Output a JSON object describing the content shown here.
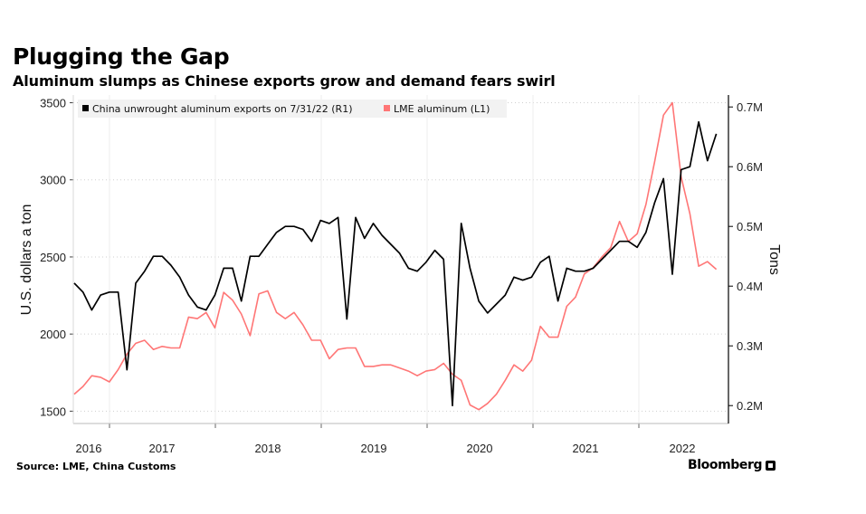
{
  "header": {
    "title": "Plugging the Gap",
    "subtitle": "Aluminum slumps as Chinese exports grow and demand fears swirl"
  },
  "footer": {
    "source": "Source: LME, China Customs",
    "brand": "Bloomberg",
    "brand_icon": "bloomberg-terminal-icon"
  },
  "chart_data": {
    "type": "line",
    "title": "Plugging the Gap",
    "subtitle": "Aluminum slumps as Chinese exports grow and demand fears swirl",
    "x_axis": {
      "ticks": [
        "2016",
        "2017",
        "2018",
        "2019",
        "2020",
        "2021",
        "2022"
      ],
      "range": [
        "2015-12",
        "2022-07"
      ]
    },
    "left_axis": {
      "label": "U.S. dollars a ton",
      "ticks": [
        1500,
        2000,
        2500,
        3000,
        3500
      ],
      "range": [
        1420,
        3550
      ]
    },
    "right_axis": {
      "label": "Tons",
      "ticks": [
        0.2,
        0.3,
        0.4,
        0.5,
        0.6,
        0.7
      ],
      "tick_labels": [
        "0.2M",
        "0.3M",
        "0.4M",
        "0.5M",
        "0.6M",
        "0.7M"
      ],
      "range": [
        0.17,
        0.72
      ]
    },
    "grid": "horizontal-dotted",
    "legend": {
      "position": "top-left"
    },
    "series": [
      {
        "name": "China unwrought aluminum exports on 7/31/22 (R1)",
        "axis": "right",
        "unit": "tons (millions)",
        "color": "#000000",
        "values": [
          0.405,
          0.39,
          0.36,
          0.385,
          0.39,
          0.39,
          0.26,
          0.405,
          0.425,
          0.45,
          0.45,
          0.435,
          0.415,
          0.385,
          0.365,
          0.36,
          0.385,
          0.43,
          0.43,
          0.375,
          0.45,
          0.45,
          0.47,
          0.49,
          0.5,
          0.5,
          0.495,
          0.475,
          0.51,
          0.505,
          0.515,
          0.345,
          0.515,
          0.48,
          0.505,
          0.485,
          0.47,
          0.455,
          0.43,
          0.425,
          0.44,
          0.46,
          0.445,
          0.2,
          0.505,
          0.43,
          0.375,
          0.355,
          0.37,
          0.385,
          0.415,
          0.41,
          0.415,
          0.44,
          0.45,
          0.375,
          0.43,
          0.425,
          0.425,
          0.43,
          0.445,
          0.46,
          0.475,
          0.475,
          0.465,
          0.49,
          0.54,
          0.58,
          0.42,
          0.595,
          0.6,
          0.675,
          0.61,
          0.655
        ]
      },
      {
        "name": "LME aluminum (L1)",
        "axis": "left",
        "unit": "U.S. dollars a ton",
        "color": "#ff7676",
        "values": [
          1610,
          1660,
          1730,
          1720,
          1690,
          1770,
          1870,
          1940,
          1960,
          1900,
          1920,
          1910,
          1910,
          2110,
          2100,
          2140,
          2040,
          2270,
          2220,
          2130,
          1990,
          2260,
          2280,
          2140,
          2100,
          2140,
          2060,
          1960,
          1960,
          1840,
          1900,
          1910,
          1910,
          1790,
          1790,
          1800,
          1800,
          1780,
          1760,
          1730,
          1760,
          1770,
          1810,
          1740,
          1700,
          1540,
          1510,
          1550,
          1610,
          1700,
          1800,
          1760,
          1830,
          2050,
          1980,
          1980,
          2180,
          2240,
          2390,
          2430,
          2500,
          2560,
          2730,
          2600,
          2650,
          2840,
          3120,
          3420,
          3500,
          3020,
          2780,
          2440,
          2470,
          2420
        ]
      }
    ]
  }
}
